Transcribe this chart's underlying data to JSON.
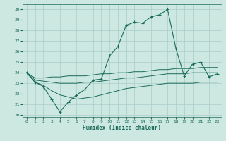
{
  "xlabel": "Humidex (Indice chaleur)",
  "background_color": "#cce8e0",
  "grid_color": "#aacccc",
  "line_color": "#1a6b5a",
  "xlim": [
    -0.5,
    23.5
  ],
  "ylim": [
    19.8,
    30.5
  ],
  "xtick_labels": [
    "0",
    "1",
    "2",
    "3",
    "4",
    "5",
    "6",
    "7",
    "8",
    "9",
    "10",
    "11",
    "12",
    "13",
    "14",
    "15",
    "16",
    "17",
    "18",
    "19",
    "20",
    "21",
    "22",
    "23"
  ],
  "ytick_labels": [
    "20",
    "21",
    "22",
    "23",
    "24",
    "25",
    "26",
    "27",
    "28",
    "29",
    "30"
  ],
  "ytick_vals": [
    20,
    21,
    22,
    23,
    24,
    25,
    26,
    27,
    28,
    29,
    30
  ],
  "humidex_main": [
    24.0,
    23.1,
    22.7,
    21.5,
    20.3,
    21.2,
    21.9,
    22.4,
    23.3,
    23.4,
    25.6,
    26.5,
    28.5,
    28.8,
    28.7,
    29.3,
    29.5,
    30.0,
    26.3,
    23.7,
    24.8,
    25.0,
    23.6,
    23.9
  ],
  "line_upper": [
    24.0,
    23.5,
    23.5,
    23.6,
    23.6,
    23.7,
    23.7,
    23.7,
    23.8,
    23.9,
    23.9,
    24.0,
    24.0,
    24.1,
    24.1,
    24.2,
    24.3,
    24.3,
    24.4,
    24.4,
    24.4,
    24.5,
    24.5,
    24.5
  ],
  "line_mid": [
    24.0,
    23.3,
    23.2,
    23.1,
    23.0,
    23.0,
    23.0,
    23.1,
    23.1,
    23.2,
    23.3,
    23.4,
    23.5,
    23.5,
    23.6,
    23.7,
    23.8,
    23.9,
    23.9,
    23.9,
    24.0,
    24.0,
    24.0,
    24.0
  ],
  "line_lower": [
    24.0,
    23.1,
    22.8,
    22.3,
    21.9,
    21.7,
    21.5,
    21.6,
    21.7,
    21.9,
    22.1,
    22.3,
    22.5,
    22.6,
    22.7,
    22.8,
    22.9,
    23.0,
    23.0,
    23.0,
    23.0,
    23.1,
    23.1,
    23.1
  ]
}
